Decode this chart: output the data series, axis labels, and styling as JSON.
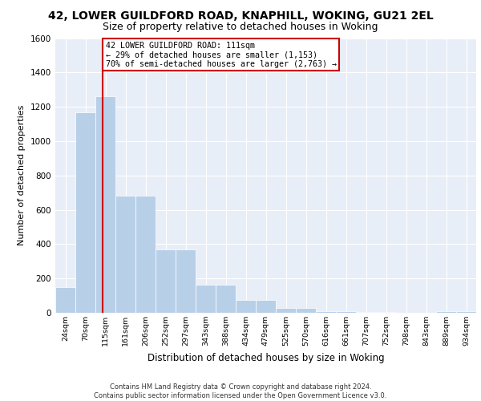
{
  "title1": "42, LOWER GUILDFORD ROAD, KNAPHILL, WOKING, GU21 2EL",
  "title2": "Size of property relative to detached houses in Woking",
  "xlabel": "Distribution of detached houses by size in Woking",
  "ylabel": "Number of detached properties",
  "categories": [
    "24sqm",
    "70sqm",
    "115sqm",
    "161sqm",
    "206sqm",
    "252sqm",
    "297sqm",
    "343sqm",
    "388sqm",
    "434sqm",
    "479sqm",
    "525sqm",
    "570sqm",
    "616sqm",
    "661sqm",
    "707sqm",
    "752sqm",
    "798sqm",
    "843sqm",
    "889sqm",
    "934sqm"
  ],
  "hist_values": [
    150,
    1170,
    1260,
    680,
    680,
    370,
    370,
    165,
    165,
    75,
    75,
    30,
    30,
    10,
    10,
    5,
    5,
    0,
    0,
    10,
    10
  ],
  "bar_color": "#b8cfe8",
  "property_line_index": 1.85,
  "property_line_color": "#cc0000",
  "annotation_text": "42 LOWER GUILDFORD ROAD: 111sqm\n← 29% of detached houses are smaller (1,153)\n70% of semi-detached houses are larger (2,763) →",
  "annotation_box_color": "#cc0000",
  "ylim": [
    0,
    1600
  ],
  "yticks": [
    0,
    200,
    400,
    600,
    800,
    1000,
    1200,
    1400,
    1600
  ],
  "bg_color": "#e8eef7",
  "footer_text": "Contains HM Land Registry data © Crown copyright and database right 2024.\nContains public sector information licensed under the Open Government Licence v3.0.",
  "title1_fontsize": 10,
  "title2_fontsize": 9
}
